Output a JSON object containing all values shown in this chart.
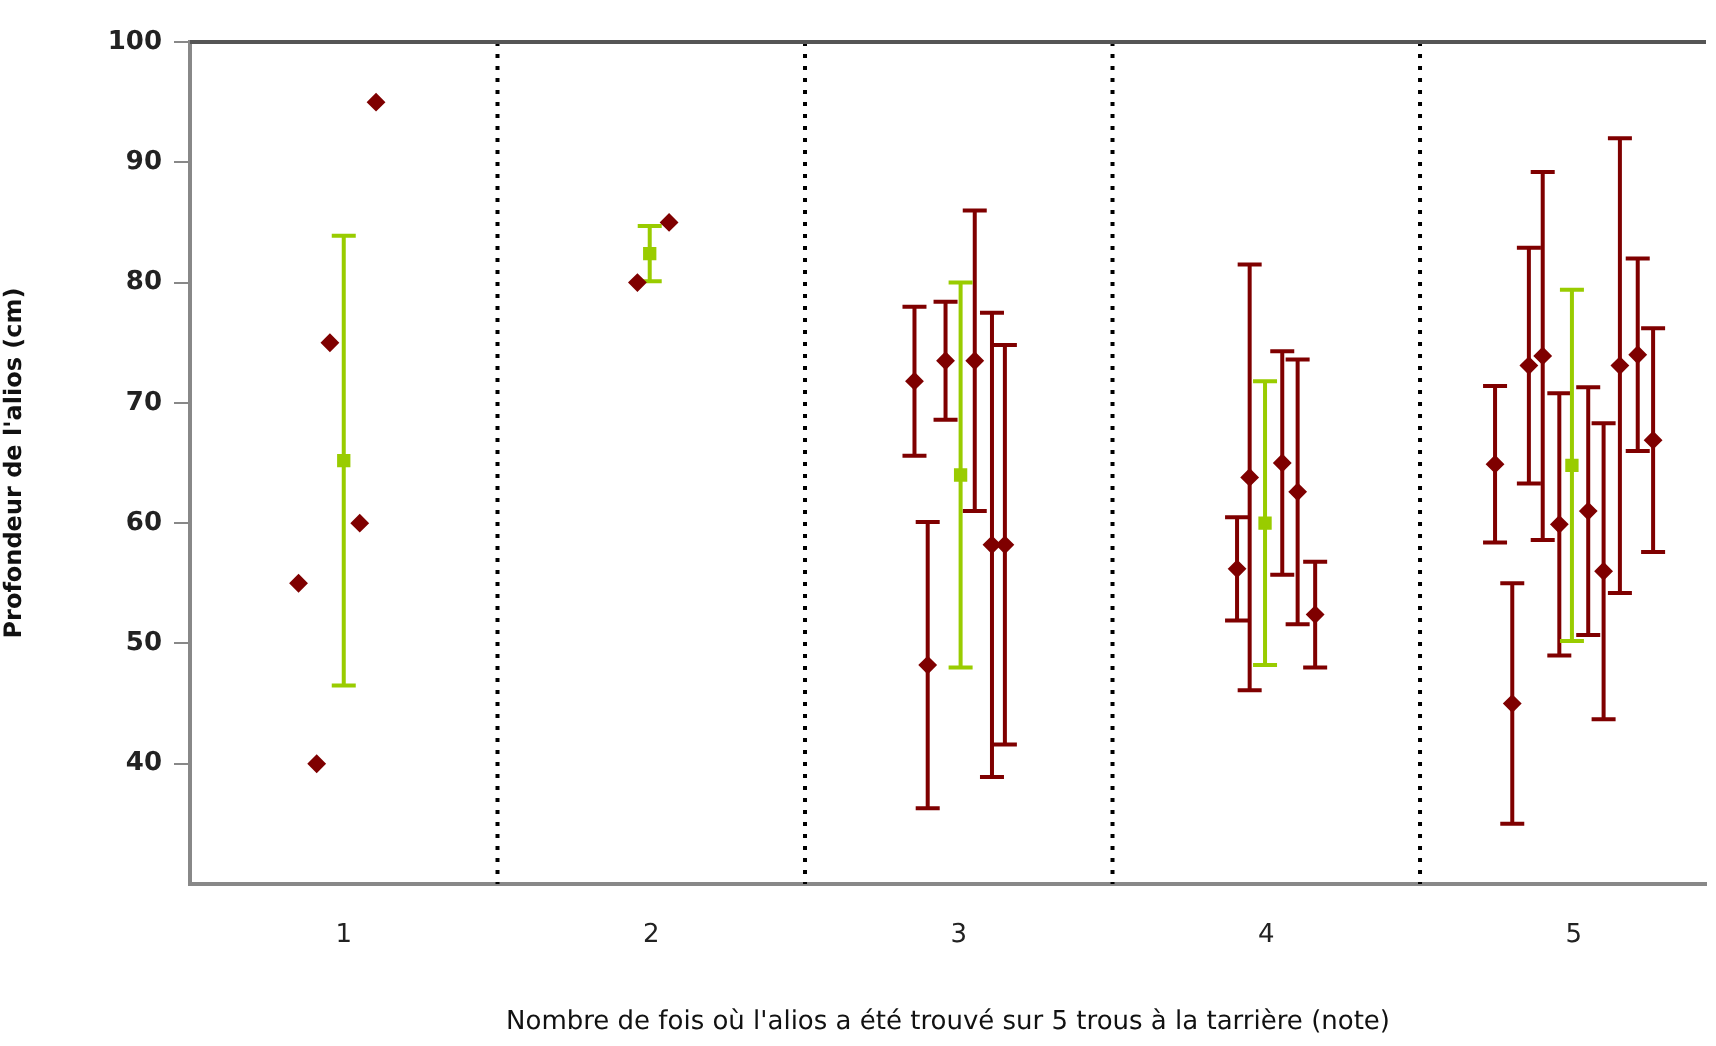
{
  "chart_data": {
    "type": "scatter",
    "xlabel": "Nombre de fois où l'alios a été trouvé sur 5 trous à la tarrière (note)",
    "ylabel": "Profondeur de l'alios (cm)",
    "xlim": [
      0.5,
      5.43
    ],
    "xticks": [
      1,
      2,
      3,
      4,
      5
    ],
    "ylim": [
      30,
      100
    ],
    "yticks": [
      40,
      50,
      60,
      70,
      80,
      90,
      100
    ],
    "grid": false,
    "legend": false,
    "ref_lines": [
      {
        "axis": "x",
        "value": 1.5,
        "color": "#000000",
        "line_style": "dotted"
      },
      {
        "axis": "x",
        "value": 2.5,
        "color": "#000000",
        "line_style": "dotted"
      },
      {
        "axis": "x",
        "value": 3.5,
        "color": "#000000",
        "line_style": "dotted"
      },
      {
        "axis": "x",
        "value": 4.5,
        "color": "#000000",
        "line_style": "dotted"
      }
    ],
    "series": [
      {
        "color": "#7f0000",
        "marker": "diamond",
        "x": [
          1.105,
          0.955,
          1.052,
          0.853,
          0.912,
          1.955,
          2.058,
          2.856,
          2.899,
          2.957,
          3.052,
          3.108,
          3.15,
          3.905,
          3.946,
          4.052,
          4.102,
          4.159,
          4.744,
          4.8,
          4.854,
          4.899,
          4.953,
          5.047,
          5.097,
          5.15,
          5.208,
          5.258
        ],
        "values": [
          95,
          75,
          60,
          55,
          40,
          80,
          85,
          71.8,
          48.2,
          73.5,
          73.5,
          58.2,
          58.2,
          56.2,
          63.8,
          65,
          62.6,
          52.4,
          64.9,
          45,
          73.1,
          73.9,
          59.9,
          61,
          56,
          73.1,
          74,
          66.9
        ],
        "errors": [
          null,
          null,
          null,
          null,
          null,
          null,
          null,
          6.2,
          11.9,
          4.9,
          12.5,
          19.3,
          16.6,
          4.3,
          17.7,
          9.3,
          11,
          4.4,
          6.5,
          10,
          9.8,
          15.3,
          10.9,
          10.3,
          12.3,
          18.9,
          8,
          9.3
        ]
      },
      {
        "color": "#99cc00",
        "marker": "square",
        "x": [
          1.0,
          1.995,
          3.006,
          3.996,
          4.994
        ],
        "values": [
          65.2,
          82.4,
          64,
          60,
          64.8
        ],
        "errors": [
          18.7,
          2.3,
          16,
          11.8,
          14.6
        ]
      }
    ]
  }
}
